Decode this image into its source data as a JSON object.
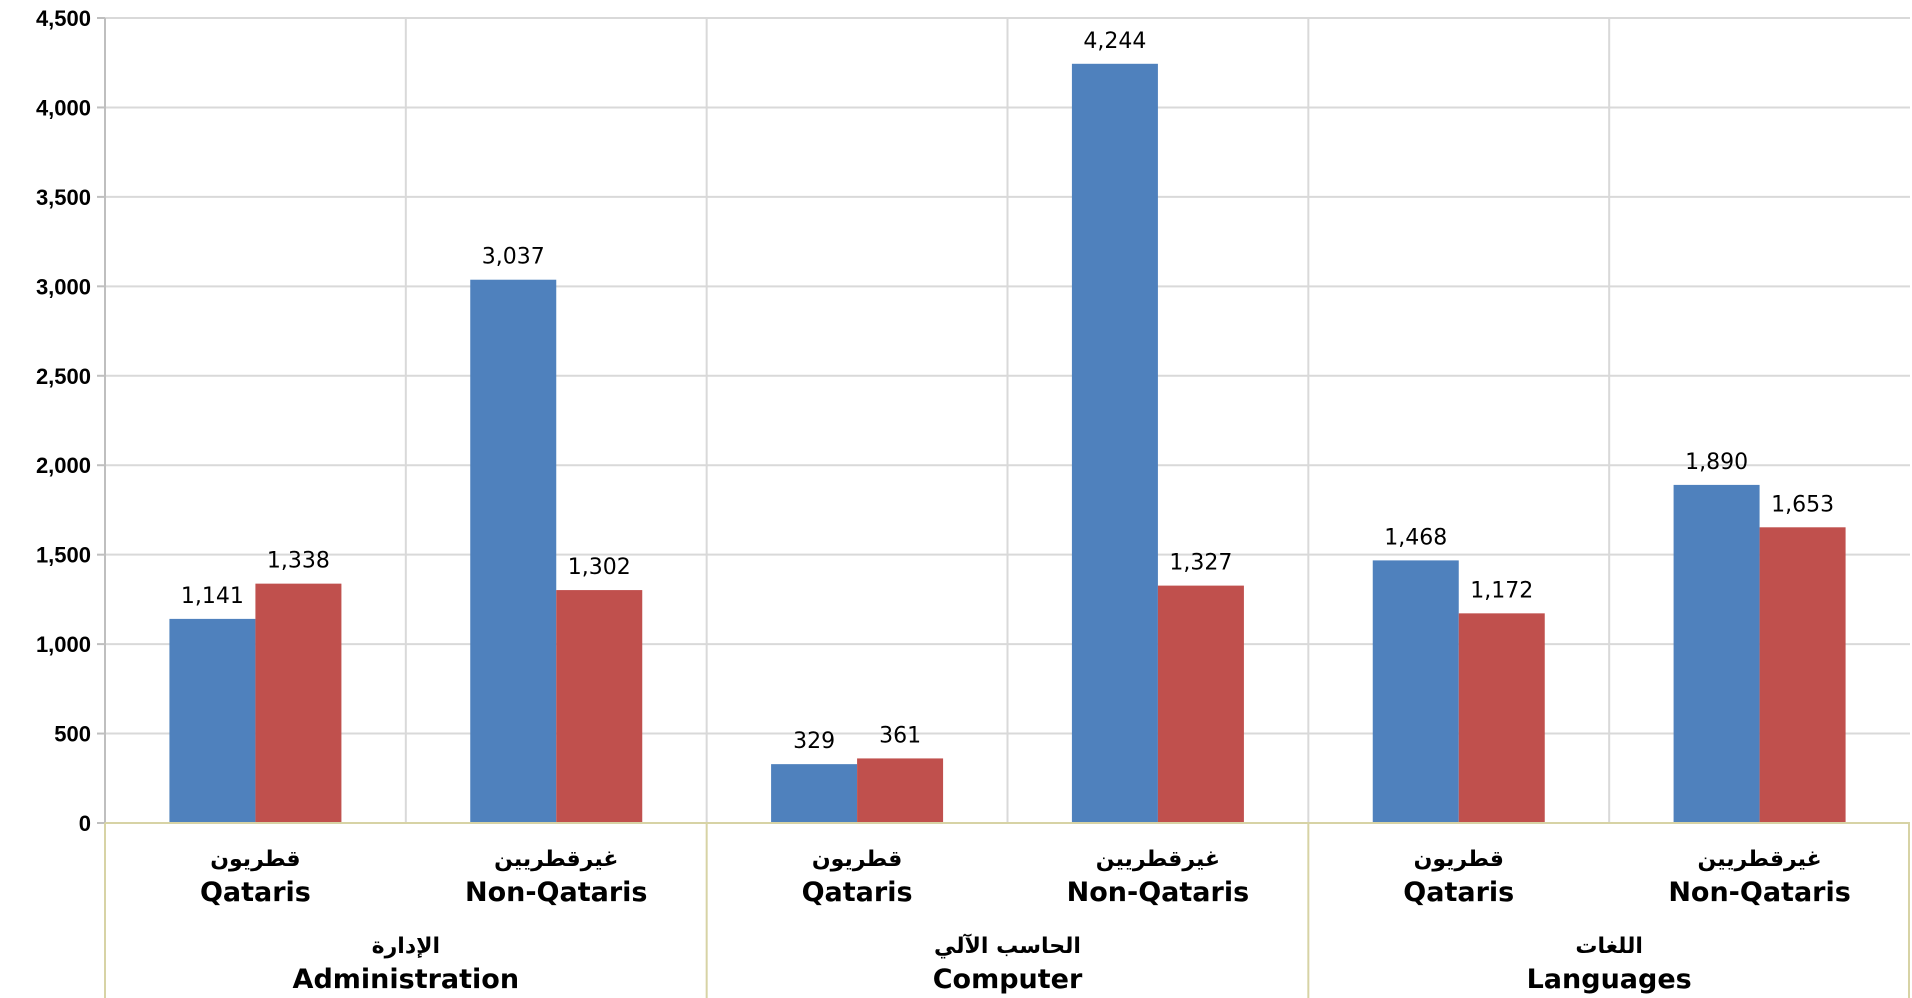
{
  "chart_data": {
    "type": "bar",
    "ylim": [
      0,
      4500
    ],
    "yticks": [
      0,
      500,
      1000,
      1500,
      2000,
      2500,
      3000,
      3500,
      4000,
      4500
    ],
    "ytick_labels": [
      "0",
      "500",
      "1,000",
      "1,500",
      "2,000",
      "2,500",
      "3,000",
      "3,500",
      "4,000",
      "4,500"
    ],
    "grid": true,
    "groups": [
      {
        "label_ar": "الإدارة",
        "label_en": "Administration"
      },
      {
        "label_ar": "الحاسب الآلي",
        "label_en": "Computer"
      },
      {
        "label_ar": "اللغات",
        "label_en": "Languages"
      }
    ],
    "categories": [
      {
        "group": 0,
        "label_ar": "قطريون",
        "label_en": "Qataris"
      },
      {
        "group": 0,
        "label_ar": "غيرقطريين",
        "label_en": "Non-Qataris"
      },
      {
        "group": 1,
        "label_ar": "قطريون",
        "label_en": "Qataris"
      },
      {
        "group": 1,
        "label_ar": "غيرقطريين",
        "label_en": "Non-Qataris"
      },
      {
        "group": 2,
        "label_ar": "قطريون",
        "label_en": "Qataris"
      },
      {
        "group": 2,
        "label_ar": "غيرقطريين",
        "label_en": "Non-Qataris"
      }
    ],
    "series": [
      {
        "color": "#4F81BD",
        "values": [
          1141,
          3037,
          329,
          4244,
          1468,
          1890
        ],
        "labels": [
          "1,141",
          "3,037",
          "329",
          "4,244",
          "1,468",
          "1,890"
        ]
      },
      {
        "color": "#C0504D",
        "values": [
          1338,
          1302,
          361,
          1327,
          1172,
          1653
        ],
        "labels": [
          "1,338",
          "1,302",
          "361",
          "1,327",
          "1,172",
          "1,653"
        ]
      }
    ],
    "colors": {
      "grid": "#D9D9D9",
      "axis": "#BFBFBF",
      "category_axis": "#D7D3A5"
    }
  }
}
